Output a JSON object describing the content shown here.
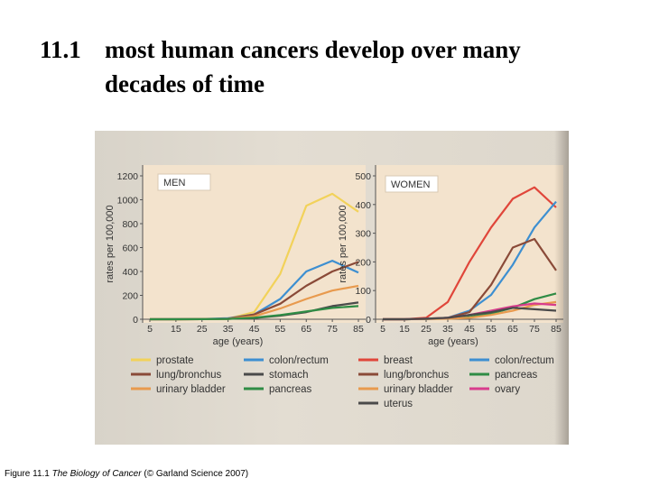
{
  "header": {
    "number": "11.1",
    "line1": "most human cancers develop over many",
    "line2": "decades of time"
  },
  "caption": {
    "prefix": "Figure 11.1",
    "book": "The Biology of Cancer",
    "suffix": "(© Garland Science 2007)"
  },
  "colors": {
    "red": "#e0463a",
    "blue": "#3d8fd1",
    "brown": "#8a4a38",
    "orange": "#e89a4e",
    "green": "#2f8c45",
    "pink": "#d83c8c",
    "yellow": "#f2d25a",
    "dark": "#4a4a4a"
  },
  "chart_data": [
    {
      "type": "line",
      "panel_label": "MEN",
      "xlabel": "age (years)",
      "ylabel": "rates per 100,000",
      "x": [
        5,
        15,
        25,
        35,
        45,
        55,
        65,
        75,
        85
      ],
      "xlim": [
        5,
        85
      ],
      "ylim": [
        0,
        1200
      ],
      "yticks": [
        0,
        200,
        400,
        600,
        800,
        1000,
        1200
      ],
      "series": [
        {
          "name": "prostate",
          "color": "#f2d25a",
          "values": [
            0,
            0,
            1,
            5,
            60,
            380,
            950,
            1050,
            900
          ]
        },
        {
          "name": "colon/rectum",
          "color": "#3d8fd1",
          "values": [
            0,
            1,
            2,
            8,
            40,
            170,
            400,
            490,
            390
          ]
        },
        {
          "name": "lung/bronchus",
          "color": "#8a4a38",
          "values": [
            0,
            0,
            1,
            5,
            40,
            130,
            280,
            400,
            480
          ]
        },
        {
          "name": "stomach",
          "color": "#4a4a4a",
          "values": [
            0,
            0,
            1,
            3,
            10,
            30,
            60,
            110,
            140
          ]
        },
        {
          "name": "urinary bladder",
          "color": "#e89a4e",
          "values": [
            0,
            0,
            1,
            3,
            25,
            90,
            170,
            240,
            280
          ]
        },
        {
          "name": "pancreas",
          "color": "#2f8c45",
          "values": [
            0,
            0,
            1,
            3,
            12,
            35,
            65,
            95,
            110
          ]
        }
      ]
    },
    {
      "type": "line",
      "panel_label": "WOMEN",
      "xlabel": "age (years)",
      "ylabel": "rates per 100,000",
      "x": [
        5,
        15,
        25,
        35,
        45,
        55,
        65,
        75,
        85
      ],
      "xlim": [
        5,
        85
      ],
      "ylim": [
        0,
        500
      ],
      "yticks": [
        0,
        100,
        200,
        300,
        400,
        500
      ],
      "series": [
        {
          "name": "breast",
          "color": "#e0463a",
          "values": [
            0,
            0,
            5,
            60,
            200,
            320,
            420,
            460,
            390
          ]
        },
        {
          "name": "colon/rectum",
          "color": "#3d8fd1",
          "values": [
            0,
            0,
            1,
            5,
            30,
            85,
            190,
            320,
            410
          ]
        },
        {
          "name": "lung/bronchus",
          "color": "#8a4a38",
          "values": [
            0,
            0,
            1,
            5,
            25,
            120,
            250,
            280,
            170
          ]
        },
        {
          "name": "pancreas",
          "color": "#2f8c45",
          "values": [
            0,
            0,
            1,
            2,
            8,
            20,
            40,
            70,
            90
          ]
        },
        {
          "name": "urinary bladder",
          "color": "#e89a4e",
          "values": [
            0,
            0,
            1,
            2,
            5,
            15,
            30,
            50,
            60
          ]
        },
        {
          "name": "ovary",
          "color": "#d83c8c",
          "values": [
            0,
            0,
            2,
            5,
            15,
            30,
            45,
            55,
            50
          ]
        },
        {
          "name": "uterus",
          "color": "#4a4a4a",
          "values": [
            0,
            0,
            2,
            5,
            15,
            25,
            40,
            35,
            30
          ]
        }
      ]
    }
  ],
  "legend": {
    "men": [
      {
        "label": "prostate",
        "color": "#f2d25a"
      },
      {
        "label": "colon/rectum",
        "color": "#3d8fd1"
      },
      {
        "label": "lung/bronchus",
        "color": "#8a4a38"
      },
      {
        "label": "stomach",
        "color": "#4a4a4a"
      },
      {
        "label": "urinary bladder",
        "color": "#e89a4e"
      },
      {
        "label": "pancreas",
        "color": "#2f8c45"
      }
    ],
    "women": [
      {
        "label": "breast",
        "color": "#e0463a"
      },
      {
        "label": "colon/rectum",
        "color": "#3d8fd1"
      },
      {
        "label": "lung/bronchus",
        "color": "#8a4a38"
      },
      {
        "label": "pancreas",
        "color": "#2f8c45"
      },
      {
        "label": "urinary bladder",
        "color": "#e89a4e"
      },
      {
        "label": "ovary",
        "color": "#d83c8c"
      },
      {
        "label": "uterus",
        "color": "#4a4a4a"
      }
    ]
  }
}
